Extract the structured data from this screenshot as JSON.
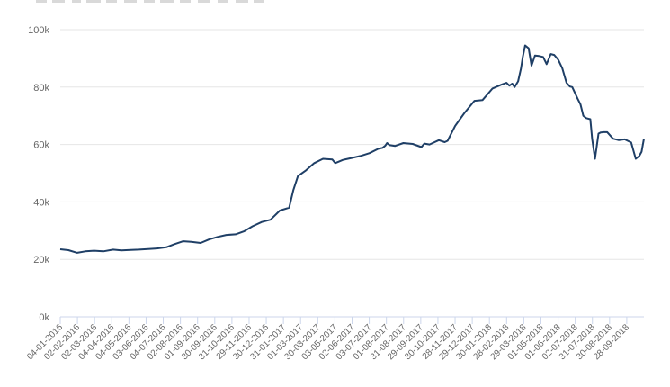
{
  "chart_data": {
    "type": "line",
    "title": "",
    "xlabel": "",
    "ylabel": "",
    "ylim": [
      0,
      100000
    ],
    "y_ticks": [
      "0k",
      "20k",
      "40k",
      "60k",
      "80k",
      "100k"
    ],
    "y_tick_values": [
      0,
      20000,
      40000,
      60000,
      80000,
      100000
    ],
    "grid": true,
    "legend": "none",
    "line_color": "#1f3f66",
    "x_tick_labels": [
      "04-01-2016",
      "02-02-2016",
      "02-03-2016",
      "04-04-2016",
      "04-05-2016",
      "03-06-2016",
      "04-07-2016",
      "02-08-2016",
      "01-09-2016",
      "30-09-2016",
      "31-10-2016",
      "29-11-2016",
      "30-12-2016",
      "31-01-2017",
      "01-03-2017",
      "30-03-2017",
      "03-05-2017",
      "02-06-2017",
      "03-07-2017",
      "01-08-2017",
      "31-08-2017",
      "29-09-2017",
      "30-10-2017",
      "28-11-2017",
      "29-12-2017",
      "30-01-2018",
      "28-02-2018",
      "29-03-2018",
      "01-05-2018",
      "01-06-2018",
      "02-07-2018",
      "31-07-2018",
      "30-08-2018",
      "28-09-2018"
    ],
    "series": [
      {
        "x": [
          "04-01-2016",
          "18-01-2016",
          "02-02-2016",
          "16-02-2016",
          "02-03-2016",
          "18-03-2016",
          "04-04-2016",
          "18-04-2016",
          "04-05-2016",
          "18-05-2016",
          "03-06-2016",
          "18-06-2016",
          "04-07-2016",
          "18-07-2016",
          "02-08-2016",
          "16-08-2016",
          "01-09-2016",
          "15-09-2016",
          "30-09-2016",
          "15-10-2016",
          "31-10-2016",
          "15-11-2016",
          "29-11-2016",
          "15-12-2016",
          "30-12-2016",
          "15-01-2017",
          "31-01-2017",
          "07-02-2017",
          "15-02-2017",
          "01-03-2017",
          "15-03-2017",
          "30-03-2017",
          "15-04-2017",
          "20-04-2017",
          "03-05-2017",
          "18-05-2017",
          "02-06-2017",
          "18-06-2017",
          "03-07-2017",
          "10-07-2017",
          "15-07-2017",
          "18-07-2017",
          "22-07-2017",
          "01-08-2017",
          "15-08-2017",
          "31-08-2017",
          "15-09-2017",
          "20-09-2017",
          "29-09-2017",
          "15-10-2017",
          "25-10-2017",
          "30-10-2017",
          "12-11-2017",
          "28-11-2017",
          "15-12-2017",
          "29-12-2017",
          "15-01-2018",
          "30-01-2018",
          "08-02-2018",
          "13-02-2018",
          "18-02-2018",
          "22-02-2018",
          "28-02-2018",
          "05-03-2018",
          "08-03-2018",
          "12-03-2018",
          "18-03-2018",
          "23-03-2018",
          "29-03-2018",
          "05-04-2018",
          "12-04-2018",
          "18-04-2018",
          "25-04-2018",
          "01-05-2018",
          "08-05-2018",
          "15-05-2018",
          "22-05-2018",
          "28-05-2018",
          "01-06-2018",
          "10-06-2018",
          "15-06-2018",
          "20-06-2018",
          "25-06-2018",
          "02-07-2018",
          "05-07-2018",
          "10-07-2018",
          "16-07-2018",
          "20-07-2018",
          "25-07-2018",
          "31-07-2018",
          "10-08-2018",
          "20-08-2018",
          "30-08-2018",
          "10-09-2018",
          "18-09-2018",
          "24-09-2018",
          "28-09-2018",
          "02-10-2018"
        ],
        "values": [
          23500,
          23200,
          22300,
          22800,
          23000,
          22800,
          23400,
          23100,
          23300,
          23400,
          23600,
          23800,
          24200,
          25300,
          26300,
          26100,
          25700,
          26900,
          27800,
          28500,
          28700,
          29800,
          31500,
          33000,
          33800,
          37000,
          38000,
          44000,
          49000,
          51000,
          53500,
          55000,
          54800,
          53500,
          54600,
          55300,
          56000,
          57000,
          58500,
          58800,
          59600,
          60500,
          59800,
          59500,
          60500,
          60200,
          59100,
          60300,
          60000,
          61500,
          60800,
          61300,
          66500,
          71000,
          75200,
          75500,
          79500,
          80800,
          81500,
          80500,
          81200,
          80000,
          82000,
          86500,
          90500,
          94500,
          93500,
          87500,
          91000,
          90800,
          90500,
          88000,
          91500,
          91200,
          89500,
          86500,
          81500,
          80200,
          80000,
          76000,
          74000,
          70000,
          69200,
          68800,
          62000,
          55000,
          63800,
          64200,
          64300,
          64300,
          62000,
          61500,
          61800,
          60700,
          55000,
          56000,
          57500,
          62000
        ]
      }
    ]
  }
}
